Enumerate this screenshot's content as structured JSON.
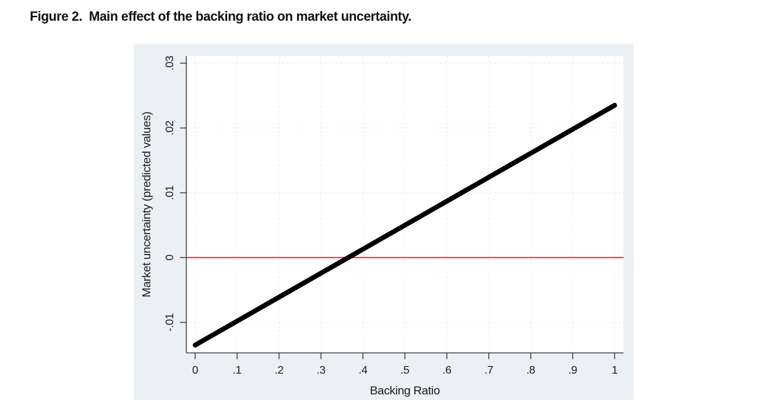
{
  "page": {
    "title": "Figure 2.  Main effect of the backing ratio on market uncertainty."
  },
  "chart_data": {
    "type": "line",
    "title": "Figure 2.  Main effect of the backing ratio on market uncertainty.",
    "xlabel": "Backing Ratio",
    "ylabel": "Market uncertainty (predicted values)",
    "xlim": [
      -0.021,
      1.021
    ],
    "ylim": [
      -0.0147,
      0.0311
    ],
    "xticks": {
      "values": [
        0,
        0.1,
        0.2,
        0.3,
        0.4,
        0.5,
        0.6,
        0.7,
        0.8,
        0.9,
        1
      ],
      "labels": [
        "0",
        ".1",
        ".2",
        ".3",
        ".4",
        ".5",
        ".6",
        ".7",
        ".8",
        ".9",
        "1"
      ]
    },
    "yticks": {
      "values": [
        -0.01,
        0,
        0.01,
        0.02,
        0.03
      ],
      "labels": [
        "-.01",
        "0",
        ".01",
        ".02",
        ".03"
      ]
    },
    "grid": {
      "show": true,
      "style": "dashed",
      "axes": "both"
    },
    "legend": {
      "show": false
    },
    "series": [
      {
        "name": "Predicted market uncertainty",
        "x": [
          0,
          1
        ],
        "y": [
          -0.0135,
          0.0235
        ],
        "color": "#000000",
        "width": 7,
        "zero_crossing_x": 0.365
      }
    ],
    "reference_line": {
      "y": 0,
      "color": "#cc2936",
      "width": 1.6
    },
    "colors": {
      "figure_bg": "#e9f1f4",
      "plot_bg": "#ffffff",
      "grid": "#ececec",
      "axis": "#3a3a3a",
      "text": "#1a1a1a"
    }
  }
}
